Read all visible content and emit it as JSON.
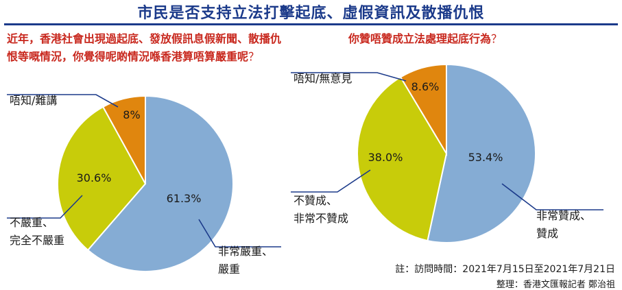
{
  "title": "市民是否支持立法打擊起底、虛假資訊及散播仇恨",
  "chart_data": [
    {
      "type": "pie",
      "title": "近年，香港社會出現過起底、發放假訊息假新聞、散播仇恨等嘅情況，你覺得呢啲情況喺香港算唔算嚴重呢",
      "title_mark": "？",
      "slices": [
        {
          "value": 61.3,
          "value_label": "61.3%",
          "label_lines": [
            "非常嚴重、",
            "嚴重"
          ],
          "color": "#85acd4"
        },
        {
          "value": 30.6,
          "value_label": "30.6%",
          "label_lines": [
            "不嚴重、",
            "完全不嚴重"
          ],
          "color": "#c8cc0a"
        },
        {
          "value": 8.0,
          "value_label": "8%",
          "label_lines": [
            "唔知/難講"
          ],
          "color": "#e0860e"
        }
      ]
    },
    {
      "type": "pie",
      "title": "你贊唔贊成立法處理起底行為",
      "title_mark": "？",
      "slices": [
        {
          "value": 53.4,
          "value_label": "53.4%",
          "label_lines": [
            "非常贊成、",
            "贊成"
          ],
          "color": "#85acd4"
        },
        {
          "value": 38.0,
          "value_label": "38.0%",
          "label_lines": [
            "不贊成、",
            "非常不贊成"
          ],
          "color": "#c8cc0a"
        },
        {
          "value": 8.6,
          "value_label": "8.6%",
          "label_lines": [
            "唔知/無意見"
          ],
          "color": "#e0860e"
        }
      ]
    }
  ],
  "note": "註：訪問時間：2021年7月15日至2021年7月21日",
  "credit": "整理：香港文匯報記者  鄭治祖",
  "colors": {
    "title": "#1b3a8a",
    "question": "#c8281e",
    "leader": "#1b3a8a"
  }
}
